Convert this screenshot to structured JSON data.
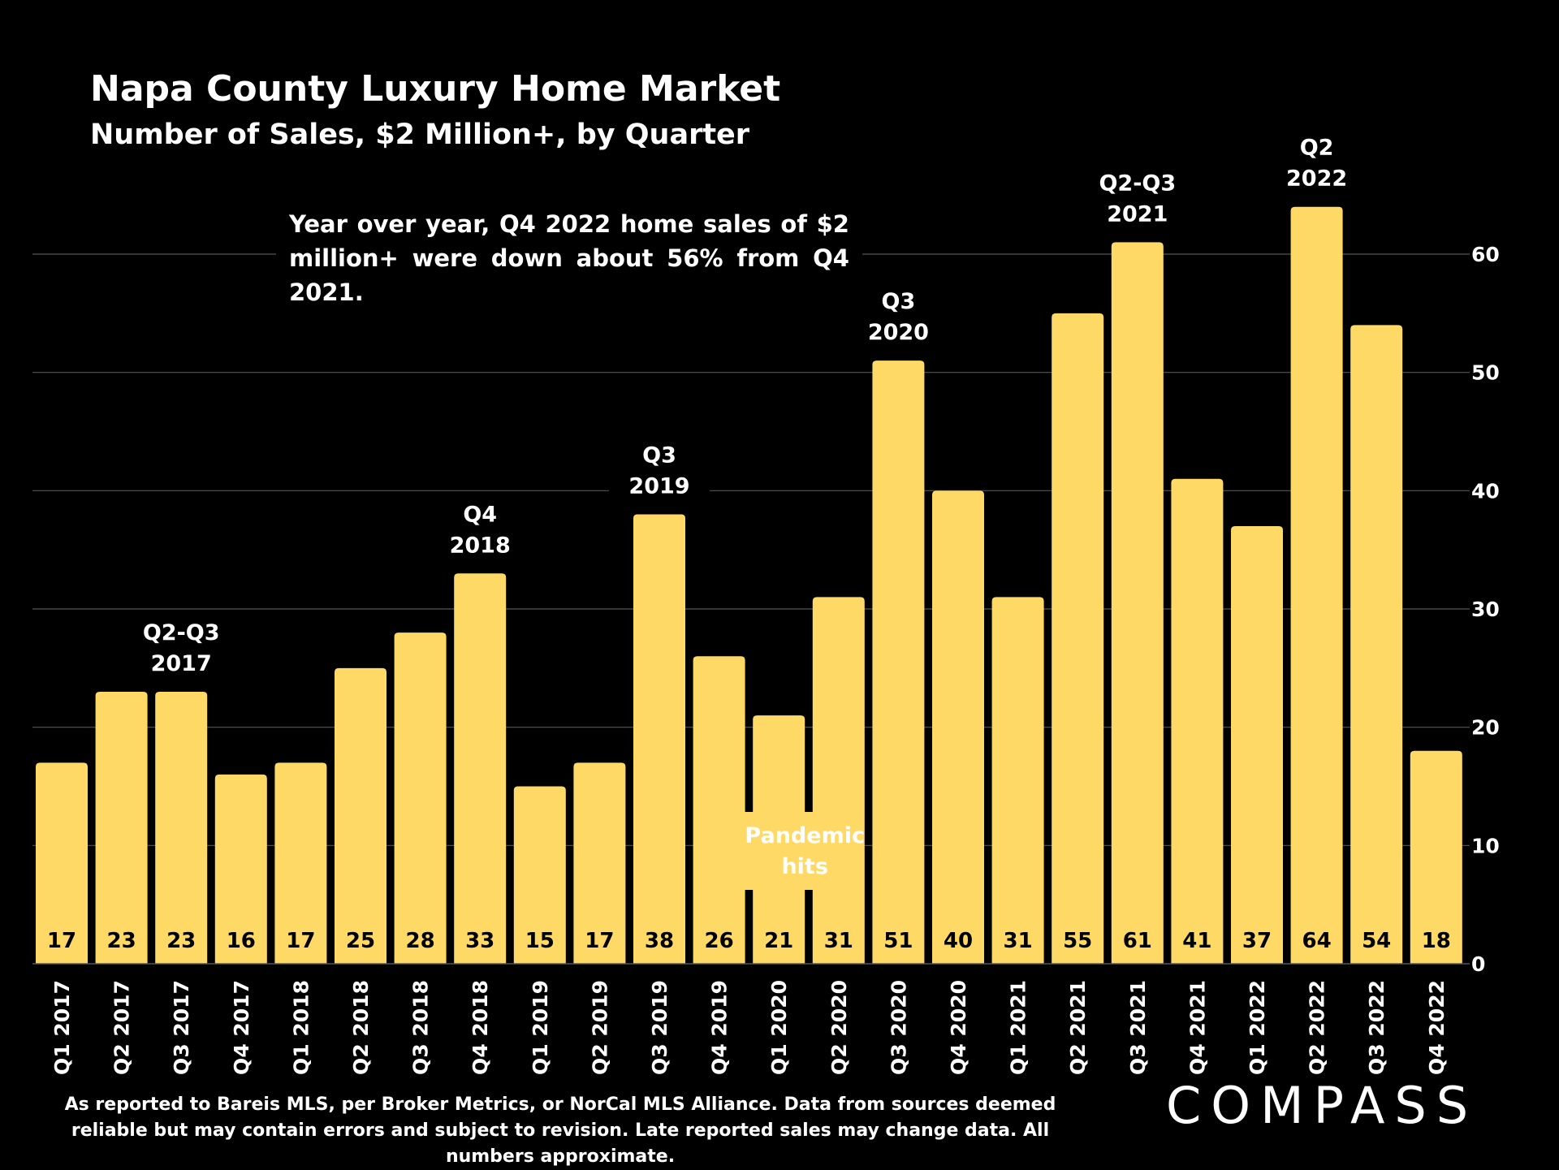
{
  "title": "Napa County Luxury Home Market",
  "subtitle": "Number of Sales, $2 Million+, by Quarter",
  "callout": "Year over year, Q4 2022 home sales of $2 million+ were down about 56% from Q4 2021.",
  "footnote": "As reported to Bareis MLS, per Broker Metrics, or NorCal MLS Alliance. Data from sources deemed reliable but may contain errors and subject to revision. Late reported sales may change data. All numbers approximate.",
  "logo": "COMPASS",
  "colors": {
    "bar": "#FFD966",
    "background": "#000000",
    "grid": "#555555",
    "text": "#FFFFFF"
  },
  "chart_data": {
    "type": "bar",
    "categories": [
      "Q1 2017",
      "Q2 2017",
      "Q3 2017",
      "Q4 2017",
      "Q1 2018",
      "Q2 2018",
      "Q3 2018",
      "Q4 2018",
      "Q1 2019",
      "Q2 2019",
      "Q3 2019",
      "Q4 2019",
      "Q1 2020",
      "Q2 2020",
      "Q3 2020",
      "Q4 2020",
      "Q1 2021",
      "Q2 2021",
      "Q3 2021",
      "Q4 2021",
      "Q1 2022",
      "Q2 2022",
      "Q3 2022",
      "Q4 2022"
    ],
    "values": [
      17,
      23,
      23,
      16,
      17,
      25,
      28,
      33,
      15,
      17,
      38,
      26,
      21,
      31,
      51,
      40,
      31,
      55,
      61,
      41,
      37,
      64,
      54,
      18
    ],
    "ylim": [
      0,
      60
    ],
    "yticks": [
      0,
      10,
      20,
      30,
      40,
      50,
      60
    ],
    "axis_side": "right",
    "annotations": [
      {
        "category": "Q3 2017",
        "lines": [
          "Q2-Q3",
          "2017"
        ]
      },
      {
        "category": "Q4 2018",
        "lines": [
          "Q4",
          "2018"
        ]
      },
      {
        "category": "Q3 2019",
        "lines": [
          "Q3",
          "2019"
        ]
      },
      {
        "category": "Q3 2020",
        "lines": [
          "Q3",
          "2020"
        ]
      },
      {
        "category": "Q3 2021",
        "lines": [
          "Q2-Q3",
          "2021"
        ]
      },
      {
        "category": "Q2 2022",
        "lines": [
          "Q2",
          "2022"
        ]
      }
    ],
    "pandemic_label": [
      "Pandemic",
      "hits"
    ]
  }
}
